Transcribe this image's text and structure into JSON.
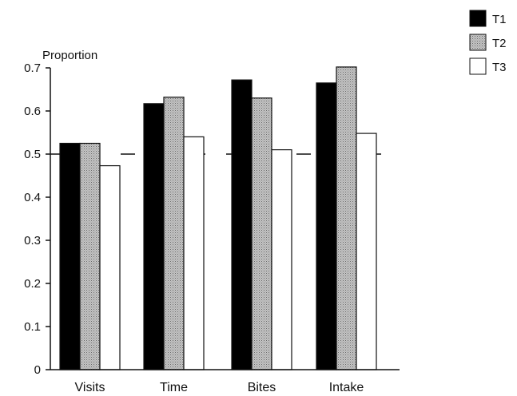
{
  "chart_data": {
    "type": "bar",
    "ylabel": "Proportion",
    "xlabel": "",
    "categories": [
      "Visits",
      "Time",
      "Bites",
      "Intake"
    ],
    "series": [
      {
        "name": "T1",
        "values": [
          0.525,
          0.617,
          0.672,
          0.665
        ]
      },
      {
        "name": "T2",
        "values": [
          0.525,
          0.632,
          0.63,
          0.702
        ]
      },
      {
        "name": "T3",
        "values": [
          0.473,
          0.54,
          0.51,
          0.548
        ]
      }
    ],
    "ylim": [
      0,
      0.7
    ],
    "yticks": [
      "0",
      "0.1",
      "0.2",
      "0.3",
      "0.4",
      "0.5",
      "0.6",
      "0.7"
    ],
    "reference_line": 0.5,
    "grid": false,
    "legend_position": "top-right",
    "colors": {
      "T1": "#000000",
      "T2": "#b8b8b8",
      "T3": "#ffffff",
      "axis": "#111111"
    }
  }
}
